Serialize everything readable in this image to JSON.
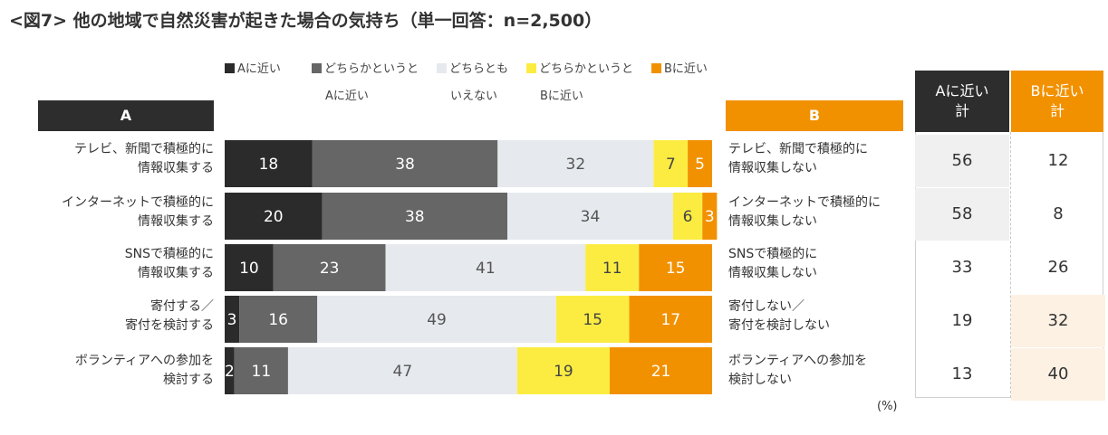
{
  "title": "<図7> 他の地域で自然災害が起きた場合の気持ち（単一回答：n=2,500）",
  "legend": [
    {
      "line1": "Aに近い",
      "line2": "",
      "color": "#2b2b2b"
    },
    {
      "line1": "どちらかというと",
      "line2": "Aに近い",
      "color": "#666666"
    },
    {
      "line1": "どちらとも",
      "line2": "いえない",
      "color": "#e6e9ed"
    },
    {
      "line1": "どちらかというと",
      "line2": "Bに近い",
      "color": "#fcec42"
    },
    {
      "line1": "Bに近い",
      "line2": "",
      "color": "#f29100"
    }
  ],
  "header_a": "A",
  "header_b": "B",
  "summary": {
    "a_head": [
      "Aに近い",
      "計"
    ],
    "b_head": [
      "Bに近い",
      "計"
    ]
  },
  "unit": "(%)",
  "colors": {
    "dark": "#2b2b2b",
    "mid": "#666666",
    "light": "#e6e9ed",
    "yellow": "#fcec42",
    "orange": "#f29100",
    "summary_a_hl": "#f0f0f0",
    "summary_b_hl": "#fdf1e4"
  },
  "rows": [
    {
      "a_label": [
        "テレビ、新聞で積極的に",
        "情報収集する"
      ],
      "b_label": [
        "テレビ、新聞で積極的に",
        "情報収集しない"
      ],
      "a_total": "56",
      "b_total": "12"
    },
    {
      "a_label": [
        "インターネットで積極的に",
        "情報収集する"
      ],
      "b_label": [
        "インターネットで積極的に",
        "情報収集しない"
      ],
      "a_total": "58",
      "b_total": "8"
    },
    {
      "a_label": [
        "SNSで積極的に",
        "情報収集する"
      ],
      "b_label": [
        "SNSで積極的に",
        "情報収集しない"
      ],
      "a_total": "33",
      "b_total": "26"
    },
    {
      "a_label": [
        "寄付する／",
        "寄付を検討する"
      ],
      "b_label": [
        "寄付しない／",
        "寄付を検討しない"
      ],
      "a_total": "19",
      "b_total": "32"
    },
    {
      "a_label": [
        "ボランティアへの参加を",
        "検討する"
      ],
      "b_label": [
        "ボランティアへの参加を",
        "検討しない"
      ],
      "a_total": "13",
      "b_total": "40"
    }
  ],
  "chart_data": {
    "type": "bar",
    "orientation": "horizontal",
    "stacked": true,
    "title": "<図7> 他の地域で自然災害が起きた場合の気持ち（単一回答：n=2,500）",
    "xlim": [
      0,
      100
    ],
    "unit": "%",
    "categories": [
      "テレビ、新聞で積極的に情報収集する",
      "インターネットで積極的に情報収集する",
      "SNSで積極的に情報収集する",
      "寄付する／寄付を検討する",
      "ボランティアへの参加を検討する"
    ],
    "series": [
      {
        "name": "Aに近い",
        "color": "#2b2b2b",
        "label_color": "#ffffff",
        "values": [
          18,
          20,
          10,
          3,
          2
        ]
      },
      {
        "name": "どちらかというとAに近い",
        "color": "#666666",
        "label_color": "#ffffff",
        "values": [
          38,
          38,
          23,
          16,
          11
        ]
      },
      {
        "name": "どちらともいえない",
        "color": "#e6e9ed",
        "label_color": "#555555",
        "values": [
          32,
          34,
          41,
          49,
          47
        ]
      },
      {
        "name": "どちらかというとBに近い",
        "color": "#fcec42",
        "label_color": "#444444",
        "values": [
          7,
          6,
          11,
          15,
          19
        ]
      },
      {
        "name": "Bに近い",
        "color": "#f29100",
        "label_color": "#ffffff",
        "values": [
          5,
          3,
          15,
          17,
          21
        ]
      }
    ]
  }
}
